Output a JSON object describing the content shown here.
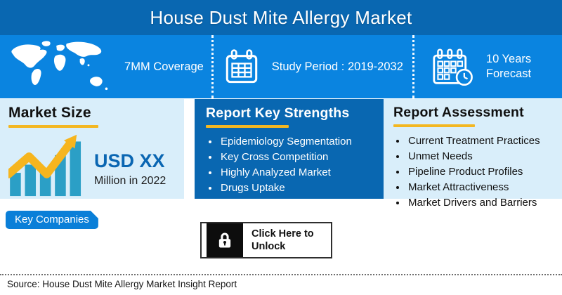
{
  "header": {
    "title": "House Dust Mite Allergy Market"
  },
  "info_bar": {
    "items": [
      {
        "icon": "world-map-icon",
        "label": "7MM Coverage"
      },
      {
        "icon": "calendar-icon",
        "label": "Study Period : 2019-2032"
      },
      {
        "icon": "calendar-clock-icon",
        "label": "10 Years Forecast"
      }
    ]
  },
  "panels": {
    "market_size": {
      "title": "Market Size",
      "icon": "growth-bar-chart-icon",
      "value": "USD XX",
      "caption": "Million in 2022"
    },
    "key_strengths": {
      "title": "Report Key Strengths",
      "items": [
        "Epidemiology Segmentation",
        "Key Cross Competition",
        "Highly Analyzed Market",
        "Drugs Uptake"
      ]
    },
    "assessment": {
      "title": "Report Assessment",
      "items": [
        "Current Treatment Practices",
        "Unmet Needs",
        "Pipeline Product Profiles",
        "Market Attractiveness",
        "Market Drivers and Barriers"
      ]
    }
  },
  "key_companies": {
    "label": "Key Companies"
  },
  "unlock": {
    "icon": "lock-icon",
    "label": "Click Here to Unlock"
  },
  "footer": {
    "source": "Source: House Dust Mite Allergy Market Insight Report"
  },
  "colors": {
    "header_blue": "#0967b1",
    "info_blue": "#0a84e0",
    "panel_light_blue": "#d9eefa",
    "accent_yellow": "#f3b722",
    "chart_teal": "#2b9fc6",
    "value_blue": "#0a66b2",
    "lock_black": "#0d0d0d"
  }
}
